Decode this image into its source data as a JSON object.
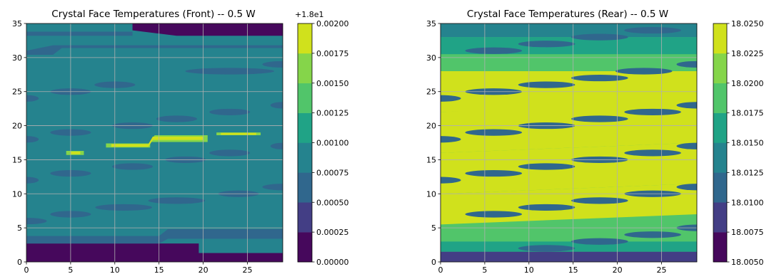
{
  "chart_data": [
    {
      "type": "contourf",
      "title": "Crystal Face Temperatures (Front) -- 0.5 W",
      "xlabel": "",
      "ylabel": "",
      "xlim": [
        0,
        29
      ],
      "ylim": [
        0,
        35
      ],
      "x_ticks": [
        0,
        5,
        10,
        15,
        20,
        25
      ],
      "y_ticks": [
        0,
        5,
        10,
        15,
        20,
        25,
        30,
        35
      ],
      "grid": true,
      "colorbar": {
        "offset_text": "+1.8e1",
        "levels": [
          0.0,
          0.00025,
          0.0005,
          0.00075,
          0.001,
          0.00125,
          0.0015,
          0.00175,
          0.002
        ],
        "tick_labels": [
          "0.00000",
          "0.00025",
          "0.00050",
          "0.00075",
          "0.00100",
          "0.00125",
          "0.00150",
          "0.00175",
          "0.00200"
        ],
        "colors": [
          "#46085c",
          "#433e85",
          "#30678d",
          "#25838e",
          "#20a386",
          "#51c56a",
          "#85d54a",
          "#d0e11c"
        ]
      },
      "background_level": 3,
      "regions": [
        {
          "level": 0,
          "points": [
            [
              0,
              0
            ],
            [
              29,
              0
            ],
            [
              29,
              1.3
            ],
            [
              19.5,
              1.3
            ],
            [
              19.5,
              2.7
            ],
            [
              0,
              2.7
            ]
          ]
        },
        {
          "level": 0,
          "points": [
            [
              12,
              35
            ],
            [
              29,
              35
            ],
            [
              29,
              33.2
            ],
            [
              17,
              33.2
            ],
            [
              12,
              34
            ]
          ]
        },
        {
          "level": 2,
          "points": [
            [
              0,
              33.8
            ],
            [
              12,
              33.8
            ],
            [
              12,
              33.2
            ],
            [
              0,
              33.2
            ]
          ]
        },
        {
          "level": 2,
          "points": [
            [
              0,
              3.8
            ],
            [
              15,
              3.8
            ],
            [
              16,
              4.8
            ],
            [
              29,
              4.8
            ],
            [
              29,
              3.4
            ],
            [
              16,
              3.4
            ],
            [
              15,
              2.7
            ],
            [
              0,
              2.7
            ]
          ]
        },
        {
          "level": 2,
          "points": [
            [
              0,
              30.4
            ],
            [
              3,
              30.4
            ],
            [
              4,
              31.4
            ],
            [
              29,
              31.4
            ],
            [
              29,
              31.8
            ],
            [
              3,
              31.8
            ],
            [
              0,
              31.0
            ]
          ]
        },
        {
          "level": 6,
          "points": [
            [
              9,
              17.4
            ],
            [
              14,
              17.4
            ],
            [
              14.5,
              18.6
            ],
            [
              20.5,
              18.6
            ],
            [
              20.5,
              17.6
            ],
            [
              14,
              17.6
            ],
            [
              14,
              16.8
            ],
            [
              9,
              16.8
            ]
          ]
        },
        {
          "level": 7,
          "points": [
            [
              9.6,
              17.3
            ],
            [
              13.8,
              17.3
            ],
            [
              14.3,
              18.4
            ],
            [
              20,
              18.4
            ],
            [
              20,
              17.9
            ],
            [
              14.3,
              17.9
            ],
            [
              13.8,
              16.9
            ],
            [
              9.6,
              16.9
            ]
          ]
        },
        {
          "level": 6,
          "points": [
            [
              21.5,
              19.0
            ],
            [
              26.5,
              19.0
            ],
            [
              26.5,
              18.6
            ],
            [
              21.5,
              18.6
            ]
          ]
        },
        {
          "level": 7,
          "points": [
            [
              22,
              18.95
            ],
            [
              26,
              18.95
            ],
            [
              26,
              18.65
            ],
            [
              22,
              18.65
            ]
          ]
        },
        {
          "level": 6,
          "points": [
            [
              4.5,
              16.3
            ],
            [
              6.5,
              16.3
            ],
            [
              6.5,
              15.7
            ],
            [
              4.5,
              15.7
            ]
          ]
        },
        {
          "level": 7,
          "points": [
            [
              5,
              16.2
            ],
            [
              6.1,
              16.2
            ],
            [
              6.1,
              15.8
            ],
            [
              5,
              15.8
            ]
          ]
        }
      ],
      "spots": [
        {
          "x": 5,
          "y": 25,
          "w": 2,
          "level": 2
        },
        {
          "x": 10,
          "y": 26,
          "w": 2,
          "level": 2
        },
        {
          "x": 5,
          "y": 19,
          "w": 2,
          "level": 2
        },
        {
          "x": 12,
          "y": 20,
          "w": 2,
          "level": 2
        },
        {
          "x": 5,
          "y": 13,
          "w": 2,
          "level": 2
        },
        {
          "x": 12,
          "y": 14,
          "w": 2,
          "level": 2
        },
        {
          "x": 5,
          "y": 7,
          "w": 2,
          "level": 2
        },
        {
          "x": 11,
          "y": 8,
          "w": 3,
          "level": 2
        },
        {
          "x": 17,
          "y": 21,
          "w": 2,
          "level": 2
        },
        {
          "x": 23,
          "y": 22,
          "w": 2,
          "level": 2
        },
        {
          "x": 18,
          "y": 15,
          "w": 2,
          "level": 2
        },
        {
          "x": 23,
          "y": 16,
          "w": 2,
          "level": 2
        },
        {
          "x": 17,
          "y": 9,
          "w": 3,
          "level": 2
        },
        {
          "x": 24,
          "y": 10,
          "w": 2,
          "level": 2
        },
        {
          "x": 23,
          "y": 28,
          "w": 5,
          "level": 2
        },
        {
          "x": 0,
          "y": 24,
          "w": 1,
          "level": 2
        },
        {
          "x": 0,
          "y": 18,
          "w": 1,
          "level": 2
        },
        {
          "x": 0,
          "y": 12,
          "w": 1,
          "level": 2
        },
        {
          "x": 0,
          "y": 6,
          "w": 2,
          "level": 2
        },
        {
          "x": 29,
          "y": 29,
          "w": 2,
          "level": 2
        },
        {
          "x": 29,
          "y": 23,
          "w": 1,
          "level": 2
        },
        {
          "x": 29,
          "y": 17,
          "w": 1,
          "level": 2
        },
        {
          "x": 29,
          "y": 11,
          "w": 2,
          "level": 2
        }
      ]
    },
    {
      "type": "contourf",
      "title": "Crystal Face Temperatures (Rear) -- 0.5 W",
      "xlabel": "",
      "ylabel": "",
      "xlim": [
        0,
        29
      ],
      "ylim": [
        0,
        35
      ],
      "x_ticks": [
        0,
        5,
        10,
        15,
        20,
        25
      ],
      "y_ticks": [
        0,
        5,
        10,
        15,
        20,
        25,
        30,
        35
      ],
      "grid": true,
      "colorbar": {
        "offset_text": "",
        "levels": [
          18.005,
          18.0075,
          18.01,
          18.0125,
          18.015,
          18.0175,
          18.02,
          18.0225,
          18.025
        ],
        "tick_labels": [
          "18.0050",
          "18.0075",
          "18.0100",
          "18.0125",
          "18.0150",
          "18.0175",
          "18.0200",
          "18.0225",
          "18.0250"
        ],
        "colors": [
          "#46085c",
          "#433e85",
          "#30678d",
          "#25838e",
          "#20a386",
          "#51c56a",
          "#85d54a",
          "#d0e11c"
        ]
      },
      "background_level": 5,
      "bands": [
        {
          "y0": 0,
          "y1": 1.5,
          "level": 1
        },
        {
          "y0": 1.5,
          "y1": 3,
          "level": 4
        },
        {
          "y0": 3,
          "y1": 5.5,
          "level": 5
        },
        {
          "y0": 5.5,
          "y1": 10,
          "level": 7,
          "tilt": 1.5
        },
        {
          "y0": 10,
          "y1": 16,
          "level": 7,
          "tilt": 1.5
        },
        {
          "y0": 16,
          "y1": 22,
          "level": 7,
          "tilt": 1.5
        },
        {
          "y0": 22,
          "y1": 28,
          "level": 7,
          "tilt": 1.0
        },
        {
          "y0": 28,
          "y1": 30.5,
          "level": 5
        },
        {
          "y0": 30.5,
          "y1": 33,
          "level": 4
        },
        {
          "y0": 33,
          "y1": 35,
          "level": 3
        }
      ],
      "spots": [
        {
          "x": 6,
          "y": 31,
          "w": 3,
          "level": 2
        },
        {
          "x": 12,
          "y": 32,
          "w": 3,
          "level": 2
        },
        {
          "x": 18,
          "y": 33,
          "w": 3,
          "level": 2
        },
        {
          "x": 24,
          "y": 34,
          "w": 3,
          "level": 2
        },
        {
          "x": 23,
          "y": 28,
          "w": 3,
          "level": 2
        },
        {
          "x": 0,
          "y": 24,
          "w": 2,
          "level": 2
        },
        {
          "x": 6,
          "y": 25,
          "w": 3,
          "level": 2
        },
        {
          "x": 12,
          "y": 26,
          "w": 3,
          "level": 2
        },
        {
          "x": 18,
          "y": 27,
          "w": 3,
          "level": 2
        },
        {
          "x": 0,
          "y": 18,
          "w": 2,
          "level": 2
        },
        {
          "x": 6,
          "y": 19,
          "w": 3,
          "level": 2
        },
        {
          "x": 12,
          "y": 20,
          "w": 3,
          "level": 2
        },
        {
          "x": 18,
          "y": 21,
          "w": 3,
          "level": 2
        },
        {
          "x": 24,
          "y": 22,
          "w": 3,
          "level": 2
        },
        {
          "x": 0,
          "y": 12,
          "w": 2,
          "level": 2
        },
        {
          "x": 6,
          "y": 13,
          "w": 3,
          "level": 2
        },
        {
          "x": 12,
          "y": 14,
          "w": 3,
          "level": 2
        },
        {
          "x": 18,
          "y": 15,
          "w": 3,
          "level": 2
        },
        {
          "x": 24,
          "y": 16,
          "w": 3,
          "level": 2
        },
        {
          "x": 6,
          "y": 7,
          "w": 3,
          "level": 2
        },
        {
          "x": 12,
          "y": 8,
          "w": 3,
          "level": 2
        },
        {
          "x": 18,
          "y": 9,
          "w": 3,
          "level": 2
        },
        {
          "x": 24,
          "y": 10,
          "w": 3,
          "level": 2
        },
        {
          "x": 12,
          "y": 2,
          "w": 3,
          "level": 2
        },
        {
          "x": 18,
          "y": 3,
          "w": 3,
          "level": 2
        },
        {
          "x": 24,
          "y": 4,
          "w": 3,
          "level": 2
        },
        {
          "x": 29,
          "y": 29,
          "w": 2,
          "level": 2
        },
        {
          "x": 29,
          "y": 23,
          "w": 2,
          "level": 2
        },
        {
          "x": 29,
          "y": 17,
          "w": 2,
          "level": 2
        },
        {
          "x": 29,
          "y": 11,
          "w": 2,
          "level": 2
        },
        {
          "x": 29,
          "y": 5,
          "w": 2,
          "level": 2
        }
      ]
    }
  ]
}
